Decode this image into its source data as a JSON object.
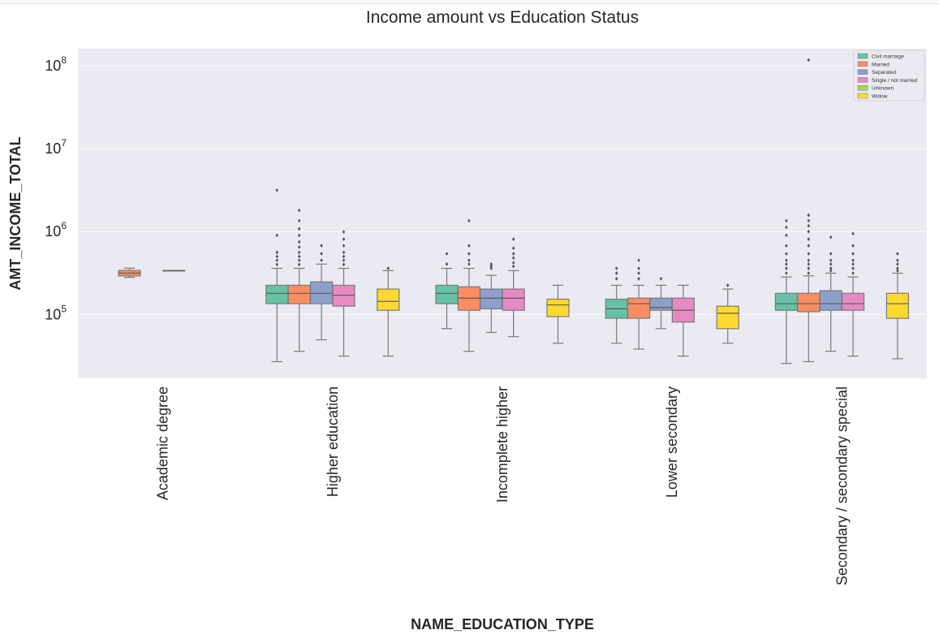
{
  "chart_data": {
    "type": "box",
    "title": "Income amount vs Education Status",
    "xlabel": "NAME_EDUCATION_TYPE",
    "ylabel": "AMT_INCOME_TOTAL",
    "yscale": "log",
    "ylim": [
      17000,
      160000000
    ],
    "yticks": [
      {
        "value": 100000,
        "base": "10",
        "exp": "5"
      },
      {
        "value": 1000000,
        "base": "10",
        "exp": "6"
      },
      {
        "value": 10000000,
        "base": "10",
        "exp": "7"
      },
      {
        "value": 100000000,
        "base": "10",
        "exp": "8"
      }
    ],
    "grid": true,
    "legend_position": "top-right",
    "categories": [
      "Academic degree",
      "Higher education",
      "Incomplete higher",
      "Lower secondary",
      "Secondary / secondary special"
    ],
    "hue": [
      {
        "name": "Civil marriage",
        "color": "#66c2a5"
      },
      {
        "name": "Married",
        "color": "#fc8d62"
      },
      {
        "name": "Separated",
        "color": "#8da0cb"
      },
      {
        "name": "Single / not married",
        "color": "#e78ac3"
      },
      {
        "name": "Unknown",
        "color": "#a6d854"
      },
      {
        "name": "Widow",
        "color": "#ffd92f"
      }
    ],
    "boxes": [
      {
        "category": "Academic degree",
        "hue": "Married",
        "whisker_low": 280000,
        "q1": 292000,
        "median": 315000,
        "q3": 340000,
        "whisker_high": 362000,
        "outliers": []
      },
      {
        "category": "Academic degree",
        "hue": "Single / not married",
        "whisker_low": 338000,
        "q1": 338000,
        "median": 338000,
        "q3": 338000,
        "whisker_high": 338000,
        "outliers": []
      },
      {
        "category": "Higher education",
        "hue": "Civil marriage",
        "whisker_low": 27000,
        "q1": 135000,
        "median": 180000,
        "q3": 225000,
        "whisker_high": 360000,
        "outliers": [
          400000,
          450000,
          500000,
          560000,
          900000,
          3150000
        ]
      },
      {
        "category": "Higher education",
        "hue": "Married",
        "whisker_low": 36000,
        "q1": 135000,
        "median": 180000,
        "q3": 225000,
        "whisker_high": 360000,
        "outliers": [
          400000,
          450000,
          500000,
          560000,
          650000,
          750000,
          900000,
          1080000,
          1350000,
          1800000
        ]
      },
      {
        "category": "Higher education",
        "hue": "Separated",
        "whisker_low": 49500,
        "q1": 135000,
        "median": 180000,
        "q3": 247500,
        "whisker_high": 405000,
        "outliers": [
          450000,
          540000,
          675000
        ]
      },
      {
        "category": "Higher education",
        "hue": "Single / not married",
        "whisker_low": 31500,
        "q1": 126000,
        "median": 171000,
        "q3": 225000,
        "whisker_high": 360000,
        "outliers": [
          400000,
          450000,
          500000,
          560000,
          675000,
          810000,
          990000
        ]
      },
      {
        "category": "Higher education",
        "hue": "Widow",
        "whisker_low": 31500,
        "q1": 112500,
        "median": 144000,
        "q3": 202500,
        "whisker_high": 337500,
        "outliers": [
          360000
        ]
      },
      {
        "category": "Incomplete higher",
        "hue": "Civil marriage",
        "whisker_low": 67500,
        "q1": 135000,
        "median": 180000,
        "q3": 225000,
        "whisker_high": 360000,
        "outliers": [
          405000,
          540000
        ]
      },
      {
        "category": "Incomplete higher",
        "hue": "Married",
        "whisker_low": 36000,
        "q1": 112500,
        "median": 157500,
        "q3": 216000,
        "whisker_high": 360000,
        "outliers": [
          405000,
          450000,
          540000,
          675000,
          1350000
        ]
      },
      {
        "category": "Incomplete higher",
        "hue": "Separated",
        "whisker_low": 60750,
        "q1": 117000,
        "median": 157500,
        "q3": 202500,
        "whisker_high": 297000,
        "outliers": [
          360000,
          382500,
          405000
        ]
      },
      {
        "category": "Incomplete higher",
        "hue": "Single / not married",
        "whisker_low": 54000,
        "q1": 112500,
        "median": 157500,
        "q3": 202500,
        "whisker_high": 337500,
        "outliers": [
          380000,
          420000,
          480000,
          540000,
          630000,
          810000
        ]
      },
      {
        "category": "Incomplete higher",
        "hue": "Widow",
        "whisker_low": 45000,
        "q1": 94500,
        "median": 130500,
        "q3": 153000,
        "whisker_high": 225000,
        "outliers": []
      },
      {
        "category": "Lower secondary",
        "hue": "Civil marriage",
        "whisker_low": 45000,
        "q1": 90000,
        "median": 117000,
        "q3": 153000,
        "whisker_high": 225000,
        "outliers": [
          270000,
          315000,
          360000
        ]
      },
      {
        "category": "Lower secondary",
        "hue": "Married",
        "whisker_low": 38250,
        "q1": 90000,
        "median": 135000,
        "q3": 157500,
        "whisker_high": 225000,
        "outliers": [
          270000,
          315000,
          360000,
          450000
        ]
      },
      {
        "category": "Lower secondary",
        "hue": "Separated",
        "whisker_low": 67500,
        "q1": 112500,
        "median": 121500,
        "q3": 157500,
        "whisker_high": 225000,
        "outliers": [
          270000
        ]
      },
      {
        "category": "Lower secondary",
        "hue": "Single / not married",
        "whisker_low": 31500,
        "q1": 81000,
        "median": 112500,
        "q3": 157500,
        "whisker_high": 225000,
        "outliers": []
      },
      {
        "category": "Lower secondary",
        "hue": "Widow",
        "whisker_low": 45000,
        "q1": 67500,
        "median": 103500,
        "q3": 126000,
        "whisker_high": 202500,
        "outliers": [
          225000
        ]
      },
      {
        "category": "Secondary / secondary special",
        "hue": "Civil marriage",
        "whisker_low": 25650,
        "q1": 112500,
        "median": 135000,
        "q3": 180000,
        "whisker_high": 283500,
        "outliers": [
          315000,
          360000,
          405000,
          450000,
          540000,
          675000,
          900000,
          1125000,
          1350000
        ]
      },
      {
        "category": "Secondary / secondary special",
        "hue": "Married",
        "whisker_low": 27000,
        "q1": 108000,
        "median": 135000,
        "q3": 180000,
        "whisker_high": 292500,
        "outliers": [
          315000,
          360000,
          405000,
          450000,
          540000,
          675000,
          810000,
          1000000,
          1170000,
          1350000,
          1575000,
          117000000
        ]
      },
      {
        "category": "Secondary / secondary special",
        "hue": "Separated",
        "whisker_low": 36000,
        "q1": 112500,
        "median": 135000,
        "q3": 193500,
        "whisker_high": 315000,
        "outliers": [
          337500,
          360000,
          405000,
          450000,
          540000,
          855000
        ]
      },
      {
        "category": "Secondary / secondary special",
        "hue": "Single / not married",
        "whisker_low": 31500,
        "q1": 112500,
        "median": 135000,
        "q3": 180000,
        "whisker_high": 283500,
        "outliers": [
          315000,
          360000,
          405000,
          450000,
          540000,
          675000,
          945000
        ]
      },
      {
        "category": "Secondary / secondary special",
        "hue": "Widow",
        "whisker_low": 29250,
        "q1": 90000,
        "median": 135000,
        "q3": 180000,
        "whisker_high": 315000,
        "outliers": [
          337500,
          360000,
          405000,
          450000,
          540000
        ]
      }
    ]
  }
}
